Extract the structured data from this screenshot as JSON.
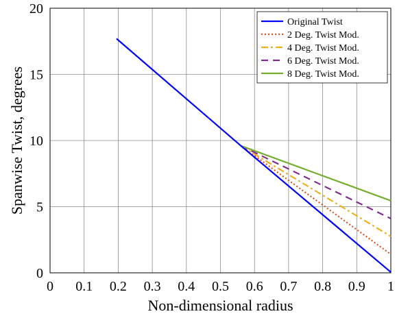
{
  "chart_data": {
    "type": "line",
    "title": "",
    "xlabel": "Non-dimensional radius",
    "ylabel": "Spanwise Twist, degrees",
    "xlim": [
      0,
      1
    ],
    "ylim": [
      0,
      20
    ],
    "xticks": [
      0,
      0.1,
      0.2,
      0.3,
      0.4,
      0.5,
      0.6,
      0.7,
      0.8,
      0.9,
      1
    ],
    "xtick_labels": [
      "0",
      "0.1",
      "0.2",
      "0.3",
      "0.4",
      "0.5",
      "0.6",
      "0.7",
      "0.8",
      "0.9",
      "1"
    ],
    "yticks": [
      0,
      5,
      10,
      15,
      20
    ],
    "ytick_labels": [
      "0",
      "5",
      "10",
      "15",
      "20"
    ],
    "grid": true,
    "legend_position": "top-right",
    "series": [
      {
        "name": "Original Twist",
        "color": "#0000ff",
        "style": "solid",
        "x": [
          0.195,
          0.56,
          1.0
        ],
        "y": [
          17.7,
          9.6,
          0.05
        ]
      },
      {
        "name": "2 Deg. Twist Mod.",
        "color": "#d95319",
        "style": "dotted",
        "x": [
          0.56,
          1.0
        ],
        "y": [
          9.6,
          1.4
        ]
      },
      {
        "name": "4 Deg. Twist Mod.",
        "color": "#edb120",
        "style": "dashdot",
        "x": [
          0.56,
          1.0
        ],
        "y": [
          9.6,
          2.75
        ]
      },
      {
        "name": "6 Deg. Twist Mod.",
        "color": "#7e2f8e",
        "style": "dashed",
        "x": [
          0.56,
          1.0
        ],
        "y": [
          9.6,
          4.1
        ]
      },
      {
        "name": "8 Deg. Twist Mod.",
        "color": "#77ac30",
        "style": "solid",
        "x": [
          0.56,
          1.0
        ],
        "y": [
          9.6,
          5.45
        ]
      }
    ]
  }
}
